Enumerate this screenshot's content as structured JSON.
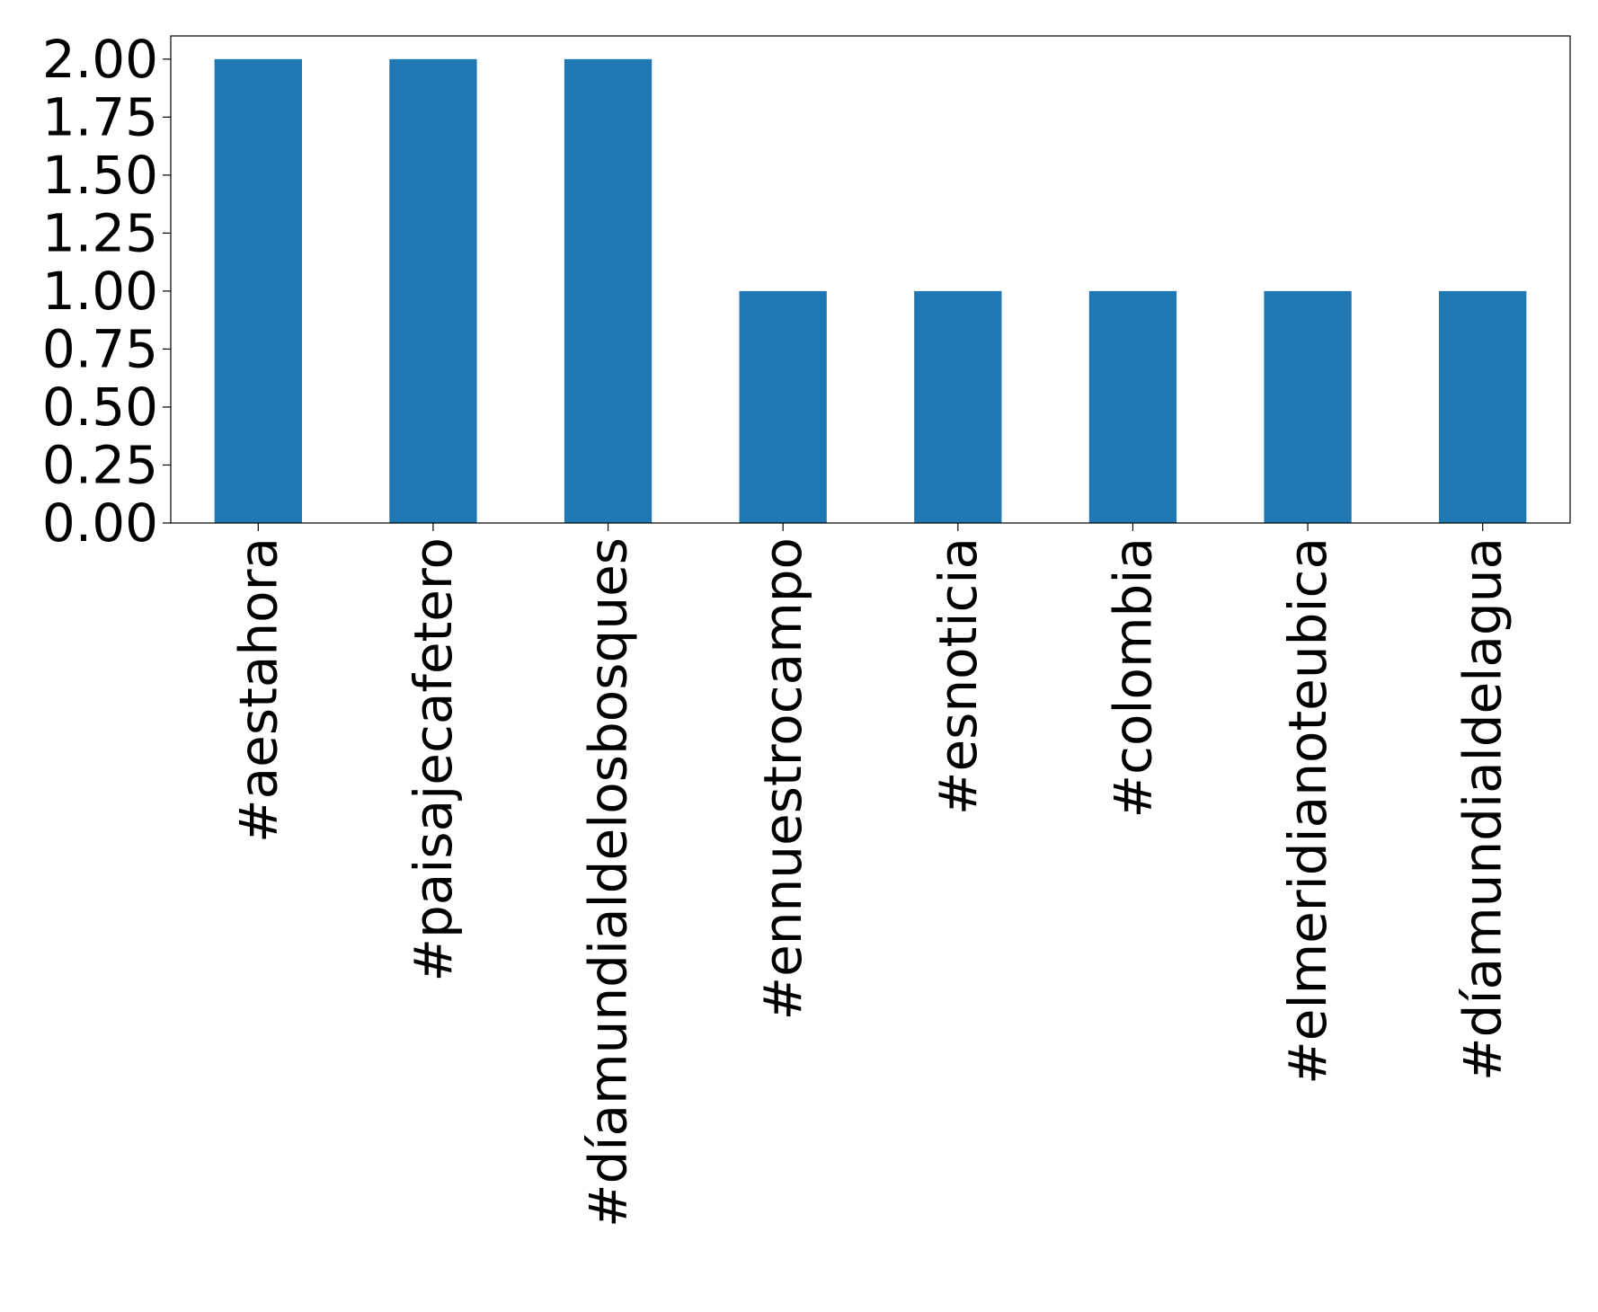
{
  "chart_data": {
    "type": "bar",
    "title": "",
    "xlabel": "",
    "ylabel": "",
    "categories": [
      "#aestahora",
      "#paisajecafetero",
      "#díamundialdelosbosques",
      "#ennuestrocampo",
      "#esnoticia",
      "#colombia",
      "#elmeridianoteubica",
      "#díamundialdelagua"
    ],
    "values": [
      2,
      2,
      2,
      1,
      1,
      1,
      1,
      1
    ],
    "ylim": [
      0,
      2.1
    ],
    "yticks": [
      0.0,
      0.25,
      0.5,
      0.75,
      1.0,
      1.25,
      1.5,
      1.75,
      2.0
    ],
    "ytick_labels": [
      "0.00",
      "0.25",
      "0.50",
      "0.75",
      "1.00",
      "1.25",
      "1.50",
      "1.75",
      "2.00"
    ],
    "grid": false,
    "legend": "none",
    "bar_color": "#1f77b4"
  }
}
